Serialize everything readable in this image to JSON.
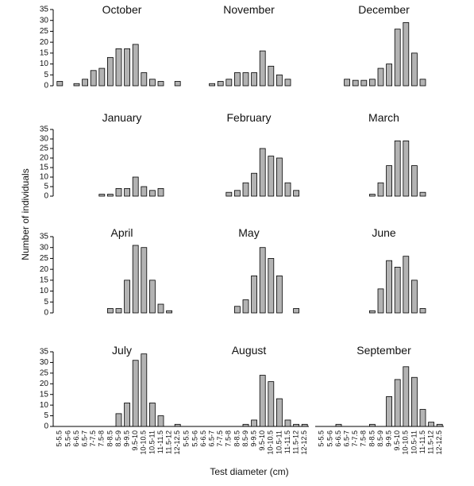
{
  "y_label": "Number of individuals",
  "x_label": "Test diameter (cm)",
  "chart_data": [
    {
      "type": "bar",
      "title": "October",
      "values": [
        2,
        0,
        1,
        3,
        7,
        8,
        13,
        17,
        17,
        19,
        6,
        3,
        2,
        0,
        2
      ],
      "color": "#b3b3b3",
      "ylim": [
        0,
        35
      ],
      "yticks": [
        0,
        5,
        10,
        15,
        20,
        25,
        30,
        35
      ]
    },
    {
      "type": "bar",
      "title": "November",
      "values": [
        0,
        0,
        0,
        1,
        2,
        3,
        6,
        6,
        6,
        16,
        9,
        5,
        3,
        0,
        0
      ],
      "color": "#b3b3b3",
      "ylim": [
        0,
        35
      ]
    },
    {
      "type": "bar",
      "title": "December",
      "values": [
        0,
        0,
        0,
        3,
        2.5,
        2.5,
        3,
        8,
        10,
        26,
        29,
        15,
        3,
        0,
        0
      ],
      "color": "#b3b3b3",
      "ylim": [
        0,
        35
      ]
    },
    {
      "type": "bar",
      "title": "January",
      "values": [
        0,
        0,
        0,
        0,
        0,
        1,
        1,
        4,
        4,
        10,
        5,
        3,
        4,
        0,
        0
      ],
      "color": "#b3b3b3",
      "ylim": [
        0,
        35
      ],
      "yticks": [
        0,
        5,
        10,
        15,
        20,
        25,
        30,
        35
      ]
    },
    {
      "type": "bar",
      "title": "February",
      "values": [
        0,
        0,
        0,
        0,
        0,
        2,
        3,
        7,
        12,
        25,
        21,
        20,
        7,
        3,
        0
      ],
      "color": "#b3b3b3",
      "ylim": [
        0,
        35
      ]
    },
    {
      "type": "bar",
      "title": "March",
      "values": [
        0,
        0,
        0,
        0,
        0,
        0,
        1,
        7,
        16,
        29,
        29,
        16,
        2,
        0,
        0
      ],
      "color": "#b3b3b3",
      "ylim": [
        0,
        35
      ]
    },
    {
      "type": "bar",
      "title": "April",
      "values": [
        0,
        0,
        0,
        0,
        0,
        0,
        2,
        2,
        15,
        31,
        30,
        15,
        4,
        1,
        0
      ],
      "color": "#b3b3b3",
      "ylim": [
        0,
        35
      ],
      "yticks": [
        0,
        5,
        10,
        15,
        20,
        25,
        30,
        35
      ]
    },
    {
      "type": "bar",
      "title": "May",
      "values": [
        0,
        0,
        0,
        0,
        0,
        0,
        3,
        6,
        17,
        30,
        25,
        17,
        0,
        2,
        0
      ],
      "color": "#b3b3b3",
      "ylim": [
        0,
        35
      ]
    },
    {
      "type": "bar",
      "title": "June",
      "values": [
        0,
        0,
        0,
        0,
        0,
        0,
        1,
        11,
        24,
        21,
        26,
        15,
        2,
        0,
        0
      ],
      "color": "#b3b3b3",
      "ylim": [
        0,
        35
      ]
    },
    {
      "type": "bar",
      "title": "July",
      "categories": [
        "5-5.5",
        "5.5-6",
        "6-6.5",
        "6.5-7",
        "7-7.5",
        "7.5-8",
        "8-8.5",
        "8.5-9",
        "9-9.5",
        "9.5-10",
        "10-10.5",
        "10.5-11",
        "11-11.5",
        "11.5-12",
        "12-12.5"
      ],
      "values": [
        0,
        0,
        0,
        0,
        0,
        0,
        0,
        6,
        11,
        31,
        34,
        11,
        5,
        0,
        1
      ],
      "color": "#b3b3b3",
      "ylim": [
        0,
        35
      ],
      "yticks": [
        0,
        5,
        10,
        15,
        20,
        25,
        30,
        35
      ]
    },
    {
      "type": "bar",
      "title": "August",
      "categories": [
        "5-5.5",
        "5.5-6",
        "6-6.5",
        "6.5-7",
        "7-7.5",
        "7.5-8",
        "8-8.5",
        "8.5-9",
        "9-9.5",
        "9.5-10",
        "10-10.5",
        "10.5-11",
        "11-11.5",
        "11.5-12",
        "12-12.5"
      ],
      "values": [
        0,
        0,
        0,
        0,
        0,
        0,
        0,
        1,
        3,
        24,
        21,
        13,
        3,
        1,
        1
      ],
      "color": "#b3b3b3",
      "ylim": [
        0,
        35
      ]
    },
    {
      "type": "bar",
      "title": "September",
      "categories": [
        "5-5.5",
        "5.5-6",
        "6-6.5",
        "6.5-7",
        "7-7.5",
        "7.5-8",
        "8-8.5",
        "8.5-9",
        "9-9.5",
        "9.5-10",
        "10-10.5",
        "10.5-11",
        "11-11.5",
        "11.5-12",
        "12-12.5"
      ],
      "values": [
        0,
        0,
        1,
        0,
        0,
        0,
        1,
        0,
        14,
        22,
        28,
        23,
        8,
        2,
        1
      ],
      "color": "#b3b3b3",
      "ylim": [
        0,
        35
      ]
    }
  ]
}
